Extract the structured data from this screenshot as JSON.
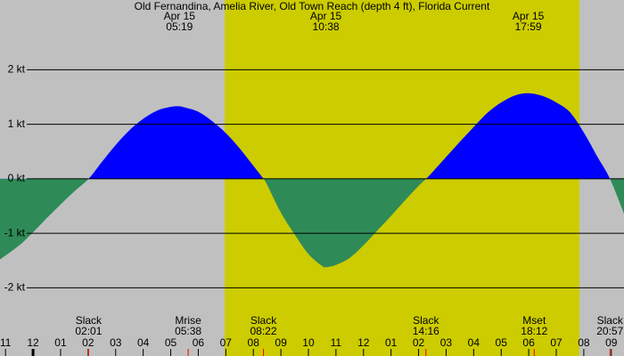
{
  "chart_data": {
    "type": "area",
    "title": "Old Fernandina, Amelia River, Old Town Reach (depth 4 ft), Florida Current",
    "x": [
      -1.2,
      -0.5,
      0,
      0.5,
      1,
      1.5,
      2.02,
      2.5,
      3,
      3.5,
      4,
      4.5,
      5,
      5.32,
      5.5,
      6,
      6.5,
      7,
      7.5,
      8,
      8.37,
      8.5,
      9,
      9.5,
      10,
      10.5,
      10.63,
      11,
      11.5,
      12,
      12.5,
      13,
      13.5,
      14,
      14.27,
      14.5,
      15,
      15.5,
      16,
      16.5,
      17,
      17.5,
      17.98,
      18.5,
      19,
      19.5,
      20,
      20.5,
      20.95,
      21.46
    ],
    "values": [
      -1.48,
      -1.22,
      -0.98,
      -0.72,
      -0.47,
      -0.23,
      0,
      0.31,
      0.62,
      0.89,
      1.1,
      1.25,
      1.32,
      1.33,
      1.31,
      1.23,
      1.06,
      0.84,
      0.56,
      0.24,
      0,
      -0.11,
      -0.62,
      -1.02,
      -1.38,
      -1.6,
      -1.62,
      -1.58,
      -1.45,
      -1.22,
      -0.95,
      -0.68,
      -0.4,
      -0.13,
      0,
      0.12,
      0.4,
      0.68,
      0.95,
      1.21,
      1.4,
      1.53,
      1.57,
      1.52,
      1.4,
      1.22,
      0.85,
      0.4,
      0,
      -0.64
    ],
    "flood_color": "#0000ff",
    "ebb_color": "#2e8b57",
    "background": "#c0c0c0",
    "daylight_color": "#cccc00",
    "daylight": [
      6.96,
      19.84
    ],
    "xlim": [
      -1.2,
      21.46
    ],
    "ylim": [
      -3.25,
      3.28
    ],
    "yticks": [
      {
        "value": -2,
        "label": "-2 kt"
      },
      {
        "value": -1,
        "label": "-1 kt"
      },
      {
        "value": 0,
        "label": "0 kt"
      },
      {
        "value": 1,
        "label": "1 kt"
      },
      {
        "value": 2,
        "label": "2 kt"
      }
    ],
    "xticks": [
      {
        "value": -1,
        "label": "11"
      },
      {
        "value": 0,
        "label": "12"
      },
      {
        "value": 1,
        "label": "01"
      },
      {
        "value": 2,
        "label": "02"
      },
      {
        "value": 3,
        "label": "03"
      },
      {
        "value": 4,
        "label": "04"
      },
      {
        "value": 5,
        "label": "05"
      },
      {
        "value": 6,
        "label": "06"
      },
      {
        "value": 7,
        "label": "07"
      },
      {
        "value": 8,
        "label": "08"
      },
      {
        "value": 9,
        "label": "09"
      },
      {
        "value": 10,
        "label": "10"
      },
      {
        "value": 11,
        "label": "11"
      },
      {
        "value": 12,
        "label": "12"
      },
      {
        "value": 13,
        "label": "01"
      },
      {
        "value": 14,
        "label": "02"
      },
      {
        "value": 15,
        "label": "03"
      },
      {
        "value": 16,
        "label": "04"
      },
      {
        "value": 17,
        "label": "05"
      },
      {
        "value": 18,
        "label": "06"
      },
      {
        "value": 19,
        "label": "07"
      },
      {
        "value": 20,
        "label": "08"
      },
      {
        "value": 21,
        "label": "09"
      }
    ],
    "peaks": [
      {
        "date": "Apr 15",
        "time": "05:19"
      },
      {
        "date": "Apr 15",
        "time": "10:38"
      },
      {
        "date": "Apr 15",
        "time": "17:59"
      }
    ],
    "events": [
      {
        "label": "Slack",
        "time": "02:01"
      },
      {
        "label": "Mrise",
        "time": "05:38"
      },
      {
        "label": "Slack",
        "time": "08:22"
      },
      {
        "label": "Slack",
        "time": "14:16"
      },
      {
        "label": "Mset",
        "time": "18:12"
      },
      {
        "label": "Slack",
        "time": "20:57"
      }
    ],
    "grid": true
  }
}
